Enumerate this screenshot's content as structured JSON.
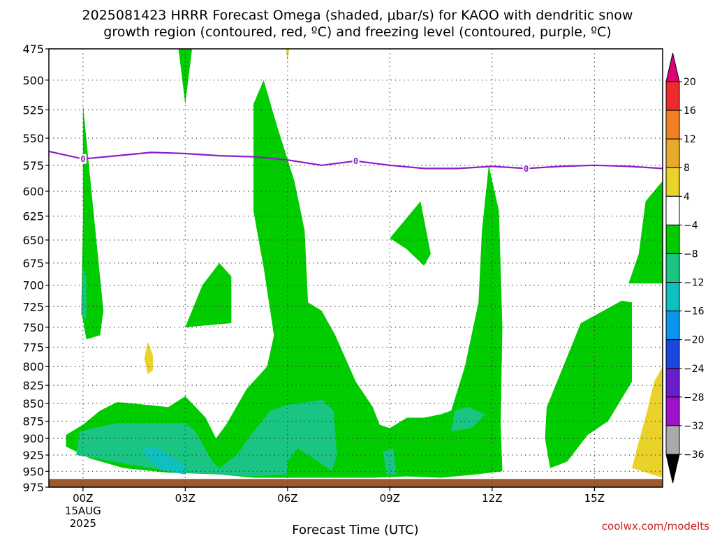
{
  "title_line1": "2025081423 HRRR Forecast Omega (shaded, μbar/s) for KAOO with dendritic snow",
  "title_line2": "growth region (contoured, red, ºC) and freezing level (contoured, purple, ºC)",
  "credit": "coolwx.com/modelts",
  "chart_data": {
    "type": "contour",
    "xlabel": "Forecast Time (UTC)",
    "ylabel": "",
    "x_unit": "forecast hours from 2025-08-15 00Z",
    "x_range": [
      -1.0,
      17.0
    ],
    "y_range": [
      475,
      975
    ],
    "y_scale": "log-pressure (inverted)",
    "y_ticks": [
      475,
      500,
      525,
      550,
      575,
      600,
      625,
      650,
      675,
      700,
      725,
      750,
      775,
      800,
      825,
      850,
      875,
      900,
      925,
      950,
      975
    ],
    "x_ticks": [
      {
        "hour": 0,
        "label": "00Z",
        "label2": "15AUG",
        "label3": "2025"
      },
      {
        "hour": 3,
        "label": "03Z"
      },
      {
        "hour": 6,
        "label": "06Z"
      },
      {
        "hour": 9,
        "label": "09Z"
      },
      {
        "hour": 12,
        "label": "12Z"
      },
      {
        "hour": 15,
        "label": "15Z"
      }
    ],
    "grid": true,
    "colorbar": {
      "unit": "μbar/s",
      "tick_labels": [
        "20",
        "16",
        "12",
        "8",
        "4",
        "−4",
        "−8",
        "−12",
        "−16",
        "−20",
        "−24",
        "−28",
        "−32",
        "−36"
      ],
      "colors": [
        "#dd0077",
        "#ee2a2a",
        "#f08020",
        "#e8aa2c",
        "#e9d22a",
        "#ffffff",
        "#00cc00",
        "#1ac482",
        "#10c0c0",
        "#0a96ee",
        "#1848e0",
        "#6a1cd0",
        "#a010c8",
        "#aaaaaa",
        "#000000"
      ]
    },
    "shaded_regions": [
      {
        "band": "-8 to -4",
        "color": "#00cc00",
        "points": [
          [
            -0.05,
            730
          ],
          [
            0,
            630
          ],
          [
            0,
            520
          ],
          [
            0.25,
            600
          ],
          [
            0.6,
            730
          ],
          [
            0.5,
            760
          ],
          [
            0.1,
            765
          ]
        ]
      },
      {
        "band": "-12 to -8",
        "color": "#1ac482",
        "points": [
          [
            -0.05,
            735
          ],
          [
            0,
            680
          ],
          [
            0.1,
            690
          ],
          [
            0.1,
            740
          ]
        ]
      },
      {
        "band": "-8 to -4",
        "color": "#00cc00",
        "points": [
          [
            2.8,
            475
          ],
          [
            3.2,
            475
          ],
          [
            3.0,
            520
          ]
        ]
      },
      {
        "band": "-8 to -4",
        "color": "#00cc00",
        "points": [
          [
            3.0,
            750
          ],
          [
            3.5,
            700
          ],
          [
            4.0,
            675
          ],
          [
            4.35,
            690
          ],
          [
            4.35,
            745
          ]
        ]
      },
      {
        "band": "-8 to -4",
        "color": "#00cc00",
        "points": [
          [
            5.0,
            520
          ],
          [
            5.3,
            500
          ],
          [
            5.7,
            540
          ],
          [
            6.2,
            590
          ],
          [
            6.5,
            640
          ],
          [
            6.6,
            720
          ],
          [
            7.0,
            730
          ],
          [
            7.4,
            760
          ],
          [
            8.0,
            820
          ],
          [
            8.5,
            855
          ],
          [
            8.7,
            880
          ],
          [
            9.0,
            885
          ],
          [
            9.5,
            870
          ],
          [
            10.0,
            870
          ],
          [
            10.5,
            865
          ],
          [
            10.8,
            860
          ],
          [
            11.2,
            800
          ],
          [
            11.6,
            720
          ],
          [
            11.7,
            640
          ],
          [
            11.9,
            575
          ],
          [
            12.2,
            620
          ],
          [
            12.3,
            750
          ],
          [
            12.25,
            880
          ],
          [
            12.3,
            950
          ],
          [
            11.5,
            955
          ],
          [
            10.5,
            960
          ],
          [
            9.5,
            958
          ],
          [
            8.5,
            960
          ],
          [
            7.8,
            960
          ],
          [
            6.5,
            960
          ],
          [
            5.0,
            960
          ],
          [
            4.0,
            955
          ],
          [
            2.5,
            952
          ],
          [
            1.2,
            945
          ],
          [
            0.2,
            930
          ],
          [
            -0.5,
            912
          ],
          [
            -0.5,
            895
          ],
          [
            0.0,
            880
          ],
          [
            0.5,
            860
          ],
          [
            1.0,
            848
          ],
          [
            1.5,
            850
          ],
          [
            2.5,
            855
          ],
          [
            3.0,
            840
          ],
          [
            3.6,
            870
          ],
          [
            3.9,
            900
          ],
          [
            4.2,
            880
          ],
          [
            4.8,
            830
          ],
          [
            5.4,
            800
          ],
          [
            5.6,
            760
          ],
          [
            5.3,
            680
          ],
          [
            5.0,
            620
          ]
        ]
      },
      {
        "band": "-12 to -8",
        "color": "#1ac482",
        "points": [
          [
            -0.2,
            925
          ],
          [
            -0.1,
            890
          ],
          [
            0.3,
            885
          ],
          [
            1.0,
            878
          ],
          [
            2.0,
            878
          ],
          [
            3.0,
            878
          ],
          [
            3.3,
            890
          ],
          [
            3.8,
            935
          ],
          [
            4.0,
            945
          ],
          [
            4.5,
            925
          ],
          [
            5.0,
            890
          ],
          [
            5.5,
            860
          ],
          [
            6.0,
            852
          ],
          [
            7.0,
            845
          ],
          [
            7.35,
            860
          ],
          [
            7.45,
            925
          ],
          [
            7.3,
            950
          ],
          [
            6.9,
            935
          ],
          [
            6.3,
            915
          ],
          [
            6.0,
            935
          ],
          [
            6.0,
            955
          ],
          [
            5.0,
            958
          ],
          [
            4.0,
            955
          ],
          [
            3.0,
            952
          ],
          [
            2.0,
            945
          ],
          [
            1.2,
            938
          ],
          [
            0.4,
            930
          ]
        ]
      },
      {
        "band": "-16 to -12",
        "color": "#10c0c0",
        "points": [
          [
            1.7,
            915
          ],
          [
            2.2,
            915
          ],
          [
            3.0,
            940
          ],
          [
            3.0,
            955
          ],
          [
            2.3,
            948
          ],
          [
            1.9,
            930
          ]
        ]
      },
      {
        "band": "-12 to -8",
        "color": "#1ac482",
        "points": [
          [
            8.8,
            920
          ],
          [
            9.1,
            915
          ],
          [
            9.2,
            955
          ],
          [
            8.9,
            955
          ]
        ]
      },
      {
        "band": "-12 to -8",
        "color": "#1ac482",
        "points": [
          [
            10.8,
            890
          ],
          [
            10.9,
            860
          ],
          [
            11.3,
            855
          ],
          [
            11.8,
            865
          ],
          [
            11.4,
            885
          ]
        ]
      },
      {
        "band": "-8 to -4",
        "color": "#00cc00",
        "points": [
          [
            9.0,
            648
          ],
          [
            9.9,
            610
          ],
          [
            10.2,
            665
          ],
          [
            10.0,
            678
          ],
          [
            9.5,
            660
          ]
        ]
      },
      {
        "band": "-8 to -4",
        "color": "#00cc00",
        "points": [
          [
            13.6,
            855
          ],
          [
            14.6,
            745
          ],
          [
            15.8,
            718
          ],
          [
            16.1,
            720
          ],
          [
            16.1,
            820
          ],
          [
            15.4,
            875
          ],
          [
            14.8,
            895
          ],
          [
            14.2,
            935
          ],
          [
            13.7,
            945
          ],
          [
            13.55,
            900
          ]
        ]
      },
      {
        "band": "-8 to -4",
        "color": "#00cc00",
        "points": [
          [
            16.0,
            698
          ],
          [
            16.3,
            665
          ],
          [
            16.5,
            610
          ],
          [
            17.0,
            590
          ],
          [
            17.0,
            698
          ]
        ]
      },
      {
        "band": "4 to 8",
        "color": "#e9d22a",
        "points": [
          [
            16.1,
            945
          ],
          [
            16.3,
            905
          ],
          [
            16.55,
            860
          ],
          [
            16.75,
            820
          ],
          [
            17.0,
            800
          ],
          [
            17.0,
            960
          ]
        ]
      },
      {
        "band": "4 to 8",
        "color": "#e9d22a",
        "points": [
          [
            1.8,
            790
          ],
          [
            1.9,
            768
          ],
          [
            2.05,
            785
          ],
          [
            2.05,
            805
          ],
          [
            1.9,
            810
          ]
        ]
      },
      {
        "band": "4 to 8",
        "color": "#e9d22a",
        "points": [
          [
            5.95,
            475
          ],
          [
            6.05,
            475
          ],
          [
            6.0,
            485
          ]
        ]
      }
    ],
    "surface_band": {
      "color": "#9b5a2e",
      "top_hPa": 962,
      "bottom_hPa": 975
    },
    "freezing_level": {
      "color": "#8a1ec8",
      "label": "0",
      "x": [
        -1.0,
        0,
        1,
        2,
        3,
        4,
        5,
        6,
        7,
        8,
        9,
        10,
        11,
        12,
        13,
        14,
        15,
        16,
        17
      ],
      "y": [
        562,
        569,
        566,
        563,
        564,
        566,
        567,
        570,
        575,
        571,
        575,
        578,
        578,
        576,
        578,
        576,
        575,
        576,
        578
      ],
      "label_x": [
        0,
        8,
        13
      ]
    }
  }
}
